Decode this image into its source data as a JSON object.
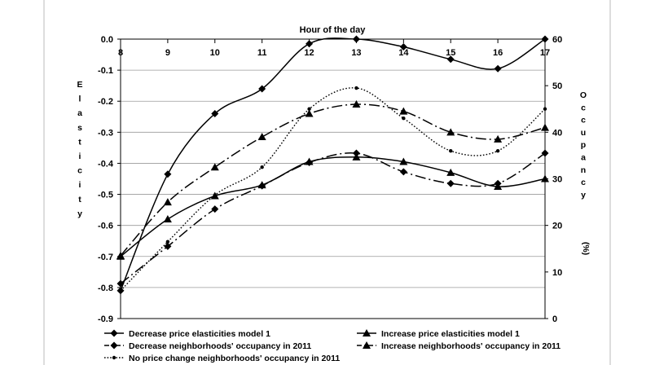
{
  "chart_data": {
    "type": "line",
    "title": "Hour of the day",
    "x": [
      8,
      9,
      10,
      11,
      12,
      13,
      14,
      15,
      16,
      17
    ],
    "x_tick_labels": [
      "8",
      "9",
      "10",
      "11",
      "12",
      "13",
      "14",
      "15",
      "16",
      "17"
    ],
    "xlim": [
      8,
      17
    ],
    "y_left": {
      "label": "Elasticity",
      "ylim": [
        -0.9,
        0.0
      ],
      "tick_labels": [
        "0.0",
        "-0.1",
        "-0.2",
        "-0.3",
        "-0.4",
        "-0.5",
        "-0.6",
        "-0.7",
        "-0.8",
        "-0.9"
      ]
    },
    "y_right": {
      "label": "Occupancy",
      "unit_label": "(%)",
      "ylim": [
        0,
        60
      ],
      "tick_labels": [
        "60",
        "50",
        "40",
        "30",
        "20",
        "10",
        "0"
      ]
    },
    "grid": "horizontal",
    "legend_placement": "bottom",
    "series": [
      {
        "name": "Decrease price elasticities model 1",
        "axis": "left",
        "line_style": "solid",
        "marker": "diamond",
        "values": [
          -0.81,
          -0.435,
          -0.24,
          -0.16,
          -0.015,
          0.0,
          -0.025,
          -0.065,
          -0.095,
          0.0
        ]
      },
      {
        "name": "Increase price elasticities model 1",
        "axis": "left",
        "line_style": "solid",
        "marker": "triangle",
        "values": [
          -0.7,
          -0.58,
          -0.505,
          -0.47,
          -0.395,
          -0.38,
          -0.395,
          -0.43,
          -0.475,
          -0.45
        ]
      },
      {
        "name": "Decrease neighborhoods' occupancy in 2011",
        "axis": "right",
        "line_style": "dash-dot",
        "marker": "diamond",
        "values": [
          7.5,
          15.5,
          23.5,
          28.5,
          33.5,
          35.5,
          31.5,
          29.0,
          29.0,
          35.5
        ]
      },
      {
        "name": "Increase neighborhoods' occupancy in 2011",
        "axis": "right",
        "line_style": "dash-dot",
        "marker": "triangle",
        "values": [
          13.5,
          25.0,
          32.5,
          39.0,
          44.0,
          46.0,
          44.5,
          40.0,
          38.5,
          41.0
        ]
      },
      {
        "name": "No price change neighborhoods' occupancy in 2011",
        "axis": "right",
        "line_style": "dotted",
        "marker": "dot",
        "values": [
          6.0,
          16.5,
          26.5,
          32.5,
          45.0,
          49.5,
          43.0,
          36.0,
          36.0,
          45.0
        ]
      }
    ]
  }
}
